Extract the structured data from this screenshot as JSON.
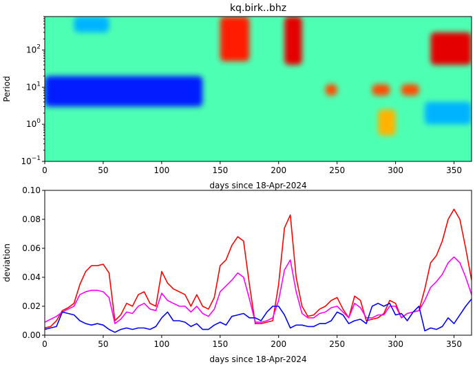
{
  "chart_data": [
    {
      "type": "heatmap",
      "title": "kq.birk..bhz",
      "xlabel": "days since 18-Apr-2024",
      "ylabel": "Period",
      "xlim": [
        0,
        365
      ],
      "ylim": [
        0.1,
        800
      ],
      "yscale": "log",
      "x_ticks": [
        0,
        50,
        100,
        150,
        200,
        250,
        300,
        350
      ],
      "y_ticks": [
        {
          "value": 0.1,
          "label": "10^-1",
          "base": "10",
          "exp": "−1"
        },
        {
          "value": 1,
          "label": "10^0",
          "base": "10",
          "exp": "0"
        },
        {
          "value": 10,
          "label": "10^1",
          "base": "10",
          "exp": "1"
        },
        {
          "value": 100,
          "label": "10^2",
          "base": "10",
          "exp": "2"
        }
      ],
      "colormap": "jet",
      "regions": [
        {
          "days": [
            0,
            135
          ],
          "period": [
            3,
            20
          ],
          "level": 0.15
        },
        {
          "days": [
            25,
            55
          ],
          "period": [
            300,
            800
          ],
          "level": 0.3
        },
        {
          "days": [
            150,
            175
          ],
          "period": [
            50,
            800
          ],
          "level": 0.85
        },
        {
          "days": [
            205,
            220
          ],
          "period": [
            40,
            800
          ],
          "level": 0.9
        },
        {
          "days": [
            330,
            365
          ],
          "period": [
            40,
            300
          ],
          "level": 0.9
        },
        {
          "days": [
            240,
            250
          ],
          "period": [
            6,
            12
          ],
          "level": 0.8
        },
        {
          "days": [
            280,
            295
          ],
          "period": [
            6,
            12
          ],
          "level": 0.8
        },
        {
          "days": [
            305,
            320
          ],
          "period": [
            6,
            12
          ],
          "level": 0.8
        },
        {
          "days": [
            285,
            300
          ],
          "period": [
            0.5,
            2.5
          ],
          "level": 0.7
        },
        {
          "days": [
            325,
            365
          ],
          "period": [
            1,
            4
          ],
          "level": 0.3
        }
      ]
    },
    {
      "type": "line",
      "title": "",
      "xlabel": "days since 18-Apr-2024",
      "ylabel": "deviation",
      "xlim": [
        0,
        365
      ],
      "ylim": [
        0,
        0.1
      ],
      "x_ticks": [
        0,
        50,
        100,
        150,
        200,
        250,
        300,
        350
      ],
      "y_ticks": [
        0.0,
        0.02,
        0.04,
        0.06,
        0.08,
        0.1
      ],
      "y_tick_labels": [
        "0.00",
        "0.02",
        "0.04",
        "0.06",
        "0.08",
        "0.10"
      ],
      "series": [
        {
          "color": "#ff0000",
          "x": [
            0,
            5,
            10,
            15,
            20,
            25,
            30,
            35,
            40,
            45,
            50,
            55,
            60,
            65,
            70,
            75,
            80,
            85,
            90,
            95,
            100,
            105,
            110,
            115,
            120,
            125,
            130,
            135,
            140,
            145,
            150,
            155,
            160,
            165,
            170,
            175,
            180,
            185,
            190,
            195,
            200,
            205,
            210,
            215,
            220,
            225,
            230,
            235,
            240,
            245,
            250,
            255,
            260,
            265,
            270,
            275,
            280,
            285,
            290,
            295,
            300,
            305,
            310,
            315,
            320,
            325,
            330,
            335,
            340,
            345,
            350,
            355,
            360,
            365
          ],
          "values": [
            0.005,
            0.006,
            0.01,
            0.017,
            0.019,
            0.022,
            0.035,
            0.044,
            0.048,
            0.048,
            0.049,
            0.043,
            0.01,
            0.014,
            0.022,
            0.02,
            0.028,
            0.03,
            0.022,
            0.02,
            0.044,
            0.036,
            0.032,
            0.03,
            0.028,
            0.02,
            0.028,
            0.02,
            0.018,
            0.026,
            0.048,
            0.052,
            0.062,
            0.068,
            0.065,
            0.035,
            0.008,
            0.008,
            0.009,
            0.01,
            0.035,
            0.074,
            0.083,
            0.04,
            0.02,
            0.013,
            0.014,
            0.018,
            0.02,
            0.024,
            0.026,
            0.018,
            0.012,
            0.027,
            0.024,
            0.01,
            0.011,
            0.012,
            0.015,
            0.024,
            0.022,
            0.012,
            0.015,
            0.016,
            0.017,
            0.032,
            0.05,
            0.055,
            0.065,
            0.08,
            0.087,
            0.08,
            0.06,
            0.038
          ]
        },
        {
          "color": "#ff00ff",
          "x": [
            0,
            5,
            10,
            15,
            20,
            25,
            30,
            35,
            40,
            45,
            50,
            55,
            60,
            65,
            70,
            75,
            80,
            85,
            90,
            95,
            100,
            105,
            110,
            115,
            120,
            125,
            130,
            135,
            140,
            145,
            150,
            155,
            160,
            165,
            170,
            175,
            180,
            185,
            190,
            195,
            200,
            205,
            210,
            215,
            220,
            225,
            230,
            235,
            240,
            245,
            250,
            255,
            260,
            265,
            270,
            275,
            280,
            285,
            290,
            295,
            300,
            305,
            310,
            315,
            320,
            325,
            330,
            335,
            340,
            345,
            350,
            355,
            360,
            365
          ],
          "values": [
            0.009,
            0.011,
            0.013,
            0.016,
            0.018,
            0.02,
            0.028,
            0.03,
            0.031,
            0.031,
            0.03,
            0.026,
            0.008,
            0.011,
            0.016,
            0.015,
            0.02,
            0.022,
            0.018,
            0.017,
            0.029,
            0.024,
            0.022,
            0.02,
            0.02,
            0.016,
            0.02,
            0.015,
            0.013,
            0.018,
            0.03,
            0.034,
            0.038,
            0.043,
            0.04,
            0.025,
            0.009,
            0.009,
            0.01,
            0.012,
            0.024,
            0.045,
            0.052,
            0.03,
            0.015,
            0.012,
            0.012,
            0.015,
            0.016,
            0.019,
            0.02,
            0.016,
            0.012,
            0.022,
            0.019,
            0.012,
            0.012,
            0.014,
            0.014,
            0.02,
            0.02,
            0.012,
            0.015,
            0.016,
            0.017,
            0.024,
            0.033,
            0.037,
            0.042,
            0.05,
            0.054,
            0.05,
            0.04,
            0.028
          ]
        },
        {
          "color": "#0000ff",
          "x": [
            0,
            5,
            10,
            15,
            20,
            25,
            30,
            35,
            40,
            45,
            50,
            55,
            60,
            65,
            70,
            75,
            80,
            85,
            90,
            95,
            100,
            105,
            110,
            115,
            120,
            125,
            130,
            135,
            140,
            145,
            150,
            155,
            160,
            165,
            170,
            175,
            180,
            185,
            190,
            195,
            200,
            205,
            210,
            215,
            220,
            225,
            230,
            235,
            240,
            245,
            250,
            255,
            260,
            265,
            270,
            275,
            280,
            285,
            290,
            295,
            300,
            305,
            310,
            315,
            320,
            325,
            330,
            335,
            340,
            345,
            350,
            355,
            360,
            365
          ],
          "values": [
            0.004,
            0.005,
            0.006,
            0.016,
            0.015,
            0.014,
            0.01,
            0.008,
            0.007,
            0.008,
            0.007,
            0.004,
            0.002,
            0.004,
            0.005,
            0.004,
            0.005,
            0.005,
            0.004,
            0.006,
            0.012,
            0.016,
            0.01,
            0.01,
            0.009,
            0.006,
            0.008,
            0.004,
            0.004,
            0.007,
            0.009,
            0.007,
            0.013,
            0.014,
            0.015,
            0.012,
            0.012,
            0.01,
            0.016,
            0.02,
            0.02,
            0.014,
            0.005,
            0.007,
            0.007,
            0.006,
            0.006,
            0.008,
            0.008,
            0.01,
            0.016,
            0.014,
            0.008,
            0.01,
            0.011,
            0.008,
            0.02,
            0.022,
            0.02,
            0.022,
            0.014,
            0.015,
            0.01,
            0.016,
            0.02,
            0.003,
            0.005,
            0.004,
            0.006,
            0.012,
            0.008,
            0.014,
            0.02,
            0.025
          ]
        }
      ]
    }
  ]
}
